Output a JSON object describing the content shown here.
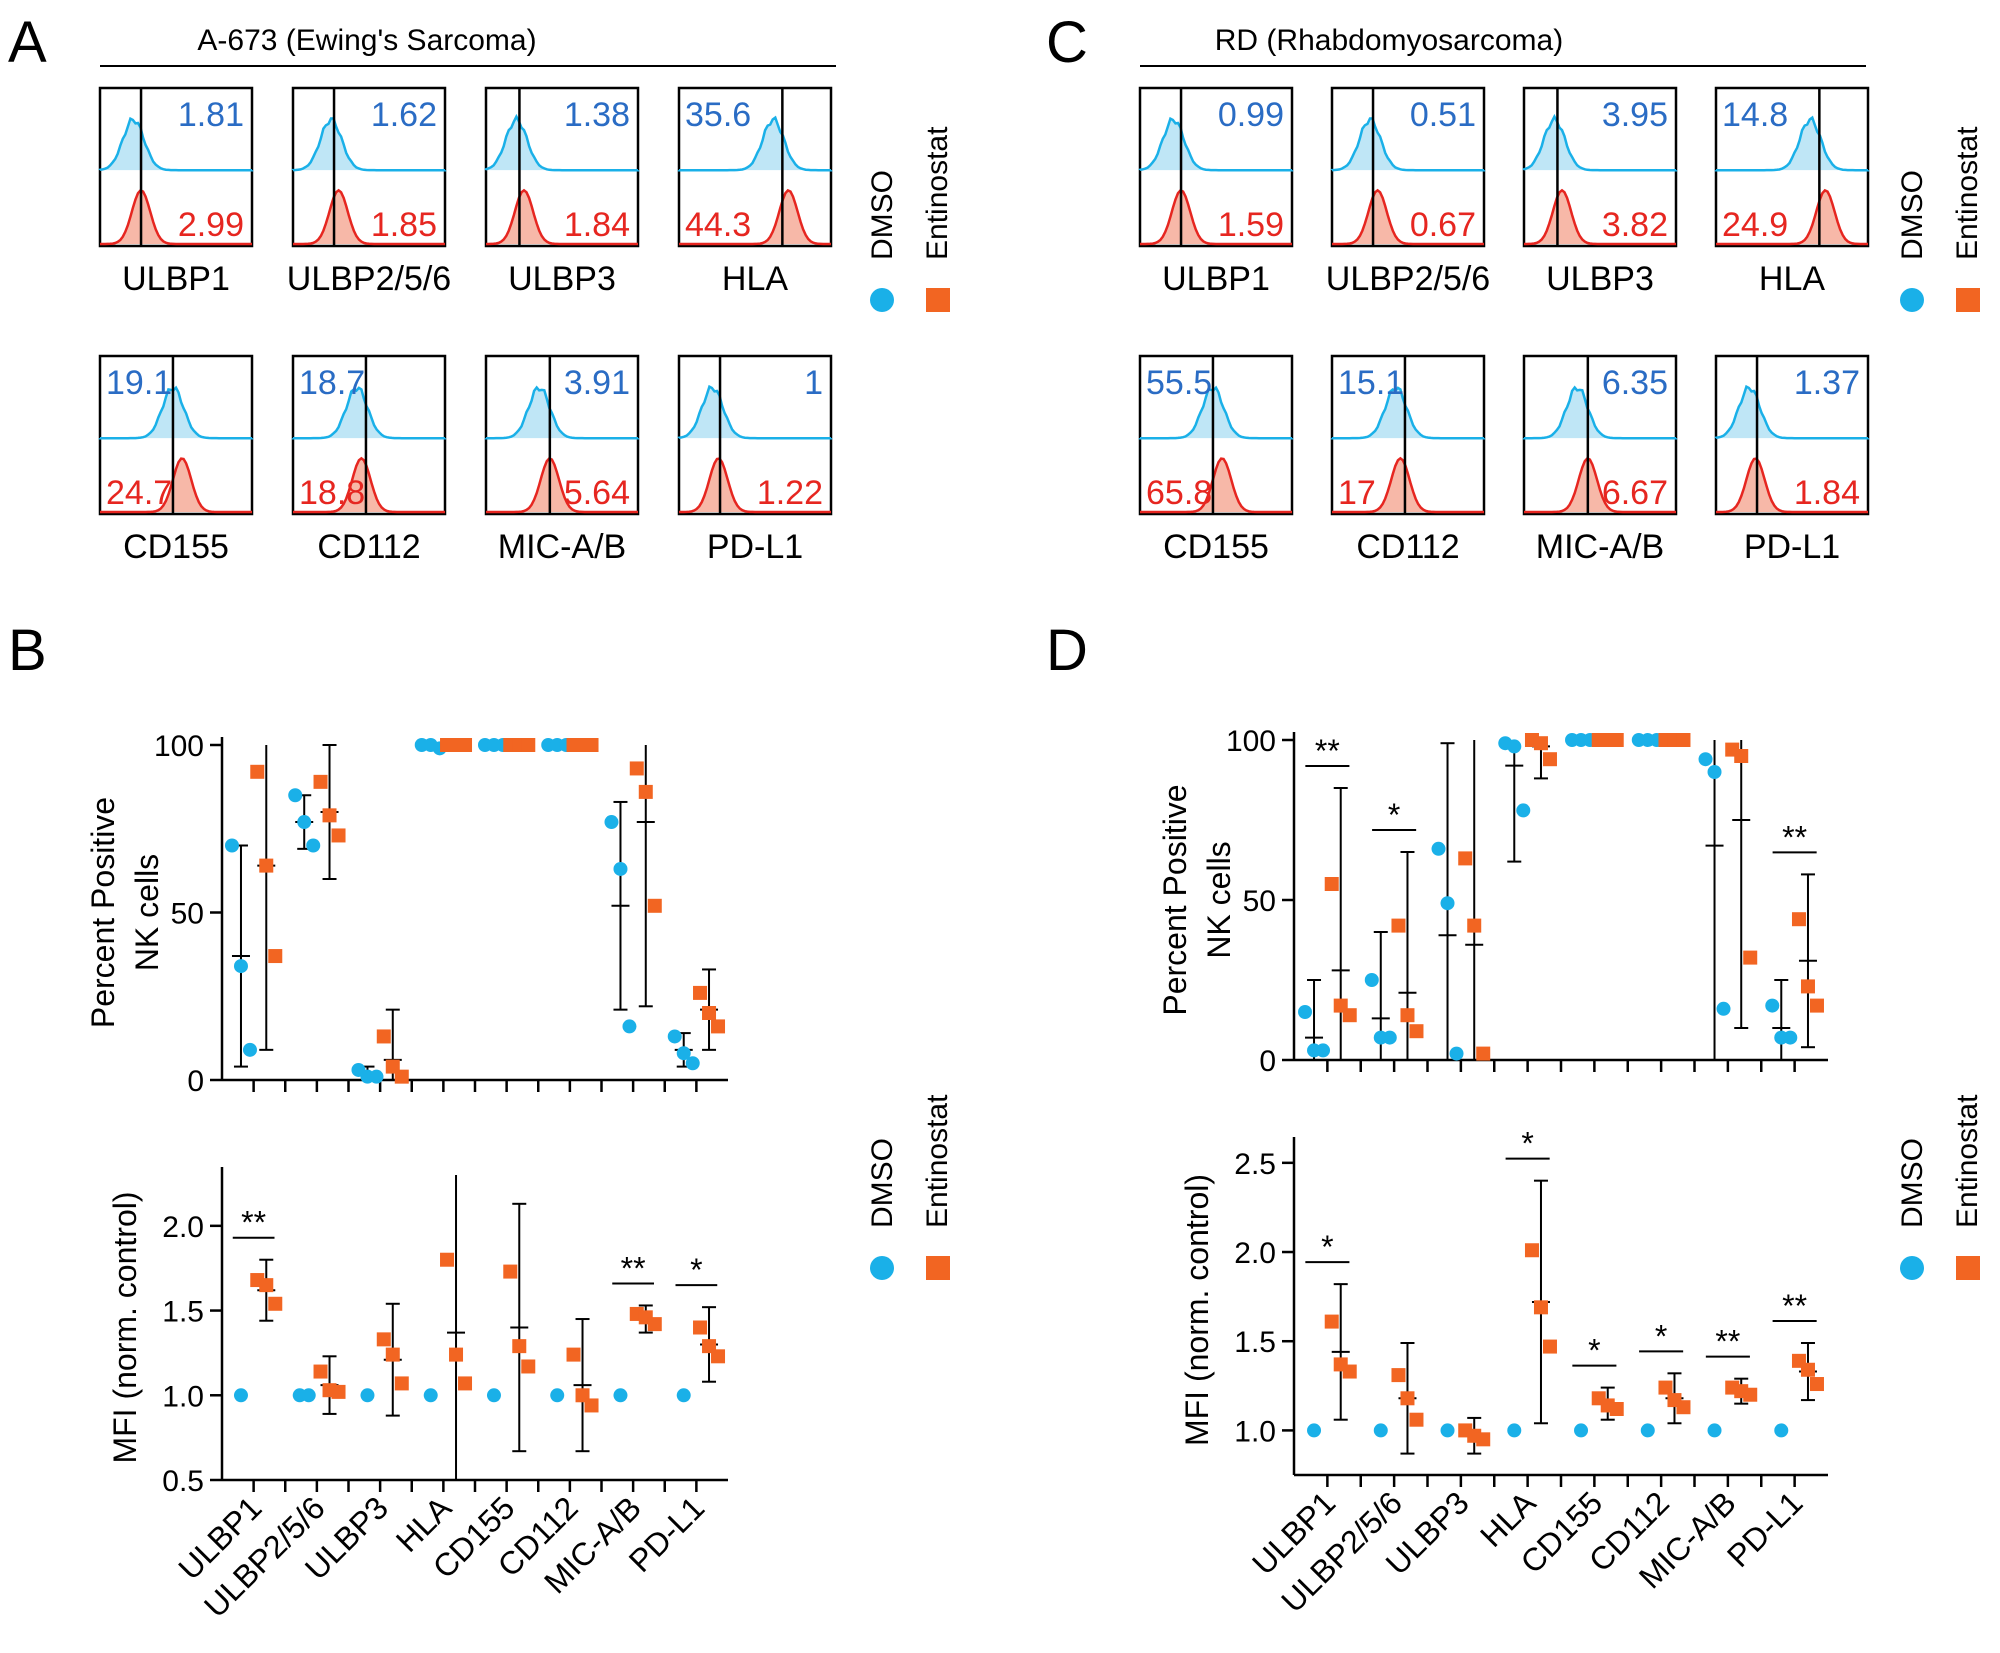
{
  "colors": {
    "dmso": "#1ab0e8",
    "entinostat": "#f26522",
    "dmso_text": "#2a6cc4",
    "entinostat_text": "#e62620",
    "axis": "#000000"
  },
  "legend": {
    "dmso": "DMSO",
    "entinostat": "Entinostat"
  },
  "panels": {
    "A": {
      "letter": "A",
      "title": "A-673 (Ewing's Sarcoma)"
    },
    "B": {
      "letter": "B"
    },
    "C": {
      "letter": "C",
      "title": "RD (Rhabdomyosarcoma)"
    },
    "D": {
      "letter": "D"
    }
  },
  "chart_data": [
    {
      "type": "histogram-grid",
      "panel": "A",
      "title": "A-673 (Ewing's Sarcoma)",
      "markers": [
        "ULBP1",
        "ULBP2/5/6",
        "ULBP3",
        "HLA",
        "CD155",
        "CD112",
        "MIC-A/B",
        "PD-L1"
      ],
      "dmso_values": [
        "1.81",
        "1.62",
        "1.38",
        "35.6",
        "19.1",
        "18.7",
        "3.91",
        "1"
      ],
      "entinostat_values": [
        "2.99",
        "1.85",
        "1.84",
        "44.3",
        "24.7",
        "18.8",
        "5.64",
        "1.22"
      ]
    },
    {
      "type": "histogram-grid",
      "panel": "C",
      "title": "RD (Rhabdomyosarcoma)",
      "markers": [
        "ULBP1",
        "ULBP2/5/6",
        "ULBP3",
        "HLA",
        "CD155",
        "CD112",
        "MIC-A/B",
        "PD-L1"
      ],
      "dmso_values": [
        "0.99",
        "0.51",
        "3.95",
        "14.8",
        "55.5",
        "15.1",
        "6.35",
        "1.37"
      ],
      "entinostat_values": [
        "1.59",
        "0.67",
        "3.82",
        "24.9",
        "65.8",
        "17",
        "6.67",
        "1.84"
      ]
    },
    {
      "type": "scatter",
      "panel": "B-top",
      "ylabel": [
        "Percent Positive",
        "NK cells"
      ],
      "ylim": [
        0,
        100
      ],
      "yticks": [
        0,
        50,
        100
      ],
      "categories": [
        "ULBP1",
        "ULBP2/5/6",
        "ULBP3",
        "HLA",
        "CD155",
        "CD112",
        "MIC-A/B",
        "PD-L1"
      ],
      "series": [
        {
          "name": "DMSO",
          "points": [
            [
              70,
              34,
              9
            ],
            [
              85,
              77,
              70
            ],
            [
              3,
              1,
              1
            ],
            [
              100,
              100,
              99
            ],
            [
              100,
              100,
              100
            ],
            [
              100,
              100,
              100
            ],
            [
              77,
              63,
              16
            ],
            [
              13,
              8,
              5
            ]
          ],
          "mean": [
            37,
            77,
            2,
            100,
            100,
            100,
            52,
            9
          ],
          "err": [
            33,
            8,
            2,
            0,
            0,
            0,
            31,
            5
          ]
        },
        {
          "name": "Entinostat",
          "points": [
            [
              92,
              64,
              37
            ],
            [
              89,
              79,
              73
            ],
            [
              13,
              4,
              1
            ],
            [
              100,
              100,
              100
            ],
            [
              100,
              100,
              100
            ],
            [
              100,
              100,
              100
            ],
            [
              93,
              86,
              52
            ],
            [
              26,
              20,
              16
            ]
          ],
          "mean": [
            64,
            80,
            6,
            100,
            100,
            100,
            77,
            21
          ],
          "err": [
            55,
            20,
            15,
            0,
            0,
            0,
            55,
            12
          ]
        }
      ],
      "significance": []
    },
    {
      "type": "scatter",
      "panel": "B-bottom",
      "ylabel": [
        "MFI (norm. control)"
      ],
      "ylim": [
        0.5,
        2.3
      ],
      "yticks": [
        0.5,
        1.0,
        1.5,
        2.0
      ],
      "ytick_labels": [
        "0.5",
        "1.0",
        "1.5",
        "2.0"
      ],
      "categories": [
        "ULBP1",
        "ULBP2/5/6",
        "ULBP3",
        "HLA",
        "CD155",
        "CD112",
        "MIC-A/B",
        "PD-L1"
      ],
      "series": [
        {
          "name": "DMSO",
          "points": [
            [
              1
            ],
            [
              1,
              1
            ],
            [
              1
            ],
            [
              1
            ],
            [
              1
            ],
            [
              1
            ],
            [
              1
            ],
            [
              1
            ]
          ],
          "mean": [
            1,
            1,
            1,
            1,
            1,
            1,
            1,
            1
          ],
          "err": [
            0,
            0,
            0,
            0,
            0,
            0,
            0,
            0
          ]
        },
        {
          "name": "Entinostat",
          "points": [
            [
              1.68,
              1.65,
              1.54
            ],
            [
              1.14,
              1.03,
              1.02
            ],
            [
              1.33,
              1.24,
              1.07
            ],
            [
              1.8,
              1.24,
              1.07
            ],
            [
              1.73,
              1.29,
              1.17
            ],
            [
              1.24,
              1.0,
              0.94
            ],
            [
              1.48,
              1.46,
              1.42
            ],
            [
              1.4,
              1.29,
              1.23
            ]
          ],
          "mean": [
            1.62,
            1.06,
            1.21,
            1.37,
            1.4,
            1.06,
            1.45,
            1.3
          ],
          "err": [
            0.18,
            0.17,
            0.33,
            0.95,
            0.73,
            0.39,
            0.08,
            0.22
          ]
        }
      ],
      "significance": [
        {
          "cat": 0,
          "label": "**"
        },
        {
          "cat": 6,
          "label": "**"
        },
        {
          "cat": 7,
          "label": "*"
        }
      ]
    },
    {
      "type": "scatter",
      "panel": "D-top",
      "ylabel": [
        "Percent Positive",
        "NK cells"
      ],
      "ylim": [
        0,
        100
      ],
      "yticks": [
        0,
        50,
        100
      ],
      "categories": [
        "ULBP1",
        "ULBP2/5/6",
        "ULBP3",
        "HLA",
        "CD155",
        "CD112",
        "MIC-A/B",
        "PD-L1"
      ],
      "series": [
        {
          "name": "DMSO",
          "points": [
            [
              15,
              3,
              3
            ],
            [
              25,
              7,
              7
            ],
            [
              66,
              49,
              2
            ],
            [
              99,
              98,
              78
            ],
            [
              100,
              100,
              100
            ],
            [
              100,
              100,
              100
            ],
            [
              94,
              90,
              16
            ],
            [
              17,
              7,
              7
            ]
          ],
          "mean": [
            7,
            13,
            39,
            92,
            100,
            100,
            67,
            10
          ],
          "err": [
            18,
            27,
            60,
            30,
            0,
            0,
            70,
            15
          ]
        },
        {
          "name": "Entinostat",
          "points": [
            [
              55,
              17,
              14
            ],
            [
              42,
              14,
              9
            ],
            [
              63,
              42,
              2
            ],
            [
              100,
              99,
              94
            ],
            [
              100,
              100,
              100
            ],
            [
              100,
              100,
              100
            ],
            [
              97,
              95,
              32
            ],
            [
              44,
              23,
              17
            ]
          ],
          "mean": [
            28,
            21,
            36,
            98,
            100,
            100,
            75,
            31
          ],
          "err": [
            57,
            44,
            70,
            10,
            0,
            0,
            65,
            27
          ]
        }
      ],
      "significance": [
        {
          "cat": 0,
          "label": "**"
        },
        {
          "cat": 1,
          "label": "*"
        },
        {
          "cat": 7,
          "label": "**"
        }
      ]
    },
    {
      "type": "scatter",
      "panel": "D-bottom",
      "ylabel": [
        "MFI (norm. control)"
      ],
      "ylim": [
        0.75,
        2.6
      ],
      "yticks": [
        1.0,
        1.5,
        2.0,
        2.5
      ],
      "ytick_labels": [
        "1.0",
        "1.5",
        "2.0",
        "2.5"
      ],
      "categories": [
        "ULBP1",
        "ULBP2/5/6",
        "ULBP3",
        "HLA",
        "CD155",
        "CD112",
        "MIC-A/B",
        "PD-L1"
      ],
      "series": [
        {
          "name": "DMSO",
          "points": [
            [
              1
            ],
            [
              1
            ],
            [
              1
            ],
            [
              1
            ],
            [
              1
            ],
            [
              1
            ],
            [
              1
            ],
            [
              1
            ]
          ],
          "mean": [
            1,
            1,
            1,
            1,
            1,
            1,
            1,
            1
          ],
          "err": [
            0,
            0,
            0,
            0,
            0,
            0,
            0,
            0
          ]
        },
        {
          "name": "Entinostat",
          "points": [
            [
              1.61,
              1.37,
              1.33
            ],
            [
              1.31,
              1.18,
              1.06
            ],
            [
              1.0,
              0.97,
              0.95
            ],
            [
              2.01,
              1.69,
              1.47
            ],
            [
              1.18,
              1.14,
              1.12
            ],
            [
              1.24,
              1.17,
              1.13
            ],
            [
              1.24,
              1.22,
              1.2
            ],
            [
              1.39,
              1.34,
              1.26
            ]
          ],
          "mean": [
            1.44,
            1.18,
            0.97,
            1.72,
            1.15,
            1.18,
            1.22,
            1.33
          ],
          "err": [
            0.38,
            0.31,
            0.1,
            0.68,
            0.09,
            0.14,
            0.07,
            0.16
          ]
        }
      ],
      "significance": [
        {
          "cat": 0,
          "label": "*"
        },
        {
          "cat": 3,
          "label": "*"
        },
        {
          "cat": 4,
          "label": "*"
        },
        {
          "cat": 5,
          "label": "*"
        },
        {
          "cat": 6,
          "label": "**"
        },
        {
          "cat": 7,
          "label": "**"
        }
      ]
    }
  ]
}
